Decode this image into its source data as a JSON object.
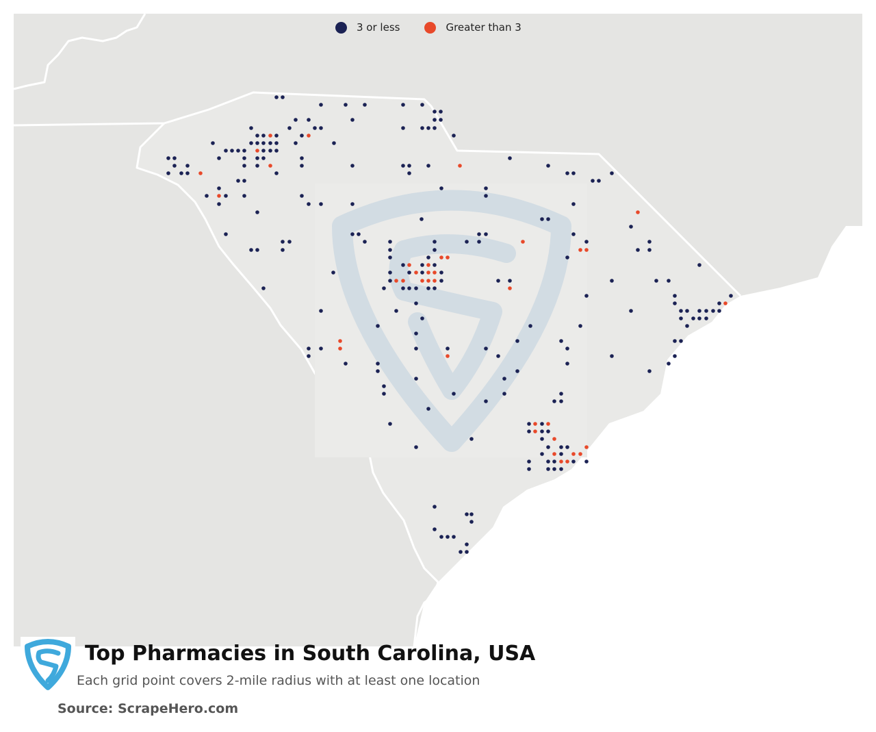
{
  "title": "Top Pharmacies in South Carolina, USA",
  "subtitle": "Each grid point covers 2-mile radius with at least one location",
  "source": "Source: ScrapeHero.com",
  "legend": [
    {
      "label": "3 or less",
      "color": "#1b2254"
    },
    {
      "label": "Greater than 3",
      "color": "#e8492a"
    }
  ],
  "colors": {
    "land": "#e5e5e3",
    "state_land": "#e9e9e7",
    "ocean": "#ffffff",
    "border": "#ffffff",
    "watermark": "#c5d4e0",
    "logo": "#3fa9dc"
  },
  "icons": {
    "logo": "scrapehero-shield-icon",
    "watermark": "scrapehero-shield-watermark-icon"
  }
}
